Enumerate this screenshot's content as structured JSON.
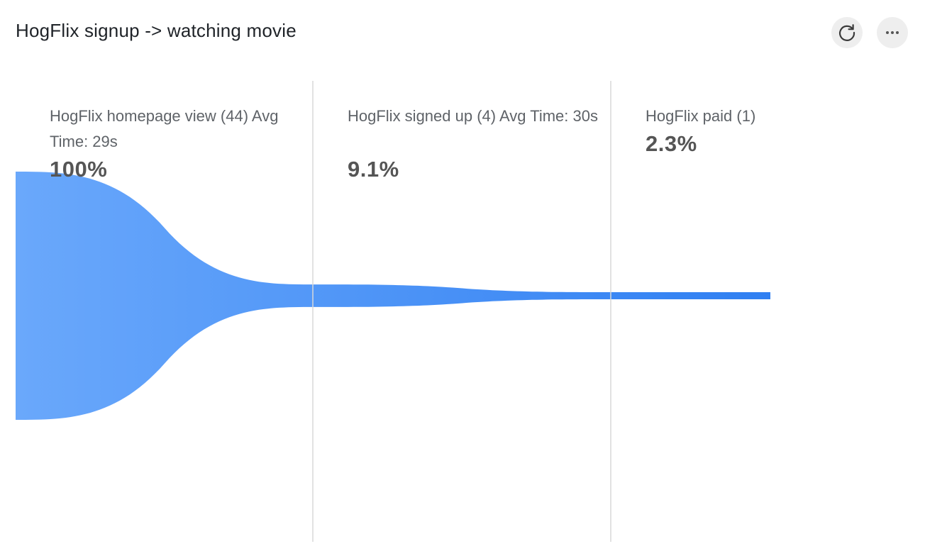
{
  "header": {
    "title": "HogFlix signup -> watching movie",
    "refresh_icon": "refresh-icon",
    "more_icon": "more-horizontal-icon"
  },
  "chart_data": {
    "type": "funnel",
    "title": "HogFlix signup -> watching movie",
    "color": "#3b82f6",
    "steps": [
      {
        "name": "HogFlix homepage view",
        "count": 44,
        "avg_time": "29s",
        "label": "HogFlix homepage view (44) Avg Time: 29s",
        "percent": 100.0,
        "percent_label": "100%"
      },
      {
        "name": "HogFlix signed up",
        "count": 4,
        "avg_time": "30s",
        "label": "HogFlix signed up (4) Avg Time: 30s",
        "percent": 9.1,
        "percent_label": "9.1%"
      },
      {
        "name": "HogFlix paid",
        "count": 1,
        "avg_time": "",
        "label": "HogFlix paid (1)",
        "percent": 2.3,
        "percent_label": "2.3%"
      }
    ]
  }
}
